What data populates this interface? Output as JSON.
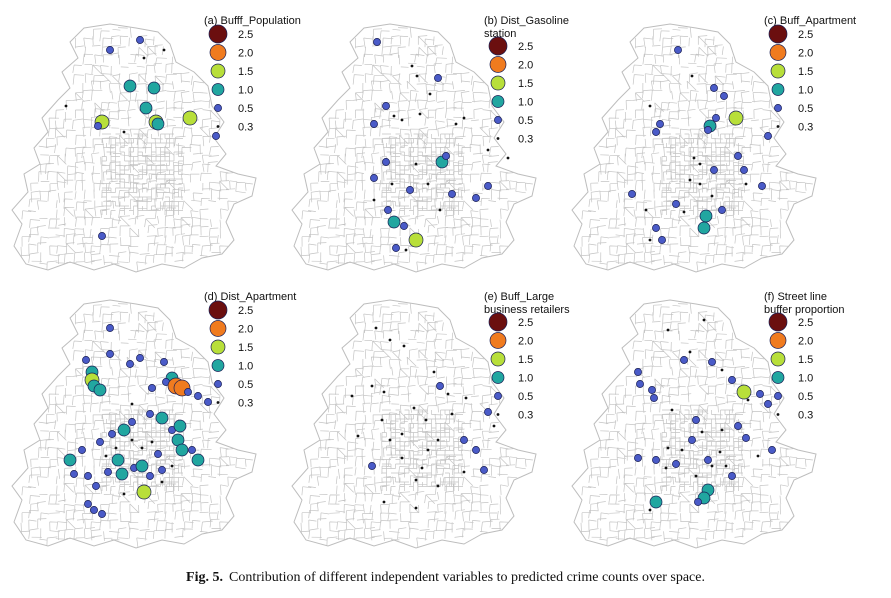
{
  "figure": {
    "caption_label": "Fig. 5.",
    "caption_text": "Contribution of different independent variables to predicted crime counts over space."
  },
  "legend_scale": [
    {
      "label": "2.5",
      "value": 2.5,
      "color": "#6b0f0f"
    },
    {
      "label": "2.0",
      "value": 2.0,
      "color": "#f07b1f"
    },
    {
      "label": "1.5",
      "value": 1.5,
      "color": "#b8df3a"
    },
    {
      "label": "1.0",
      "value": 1.0,
      "color": "#21a6a0"
    },
    {
      "label": "0.5",
      "value": 0.5,
      "color": "#4a5bc8"
    },
    {
      "label": "0.3",
      "value": 0.3,
      "color": "#111111"
    }
  ],
  "panels": [
    {
      "id": "a",
      "title_lines": [
        "(a) Bufff_Population"
      ]
    },
    {
      "id": "b",
      "title_lines": [
        "(b) Dist_Gasoline",
        "station"
      ]
    },
    {
      "id": "c",
      "title_lines": [
        "(c) Buff_Apartment"
      ]
    },
    {
      "id": "d",
      "title_lines": [
        "(d) Dist_Apartment"
      ]
    },
    {
      "id": "e",
      "title_lines": [
        "(e) Buff_Large",
        "business retailers"
      ]
    },
    {
      "id": "f",
      "title_lines": [
        "(f) Street line",
        "buffer proportion"
      ]
    }
  ]
}
